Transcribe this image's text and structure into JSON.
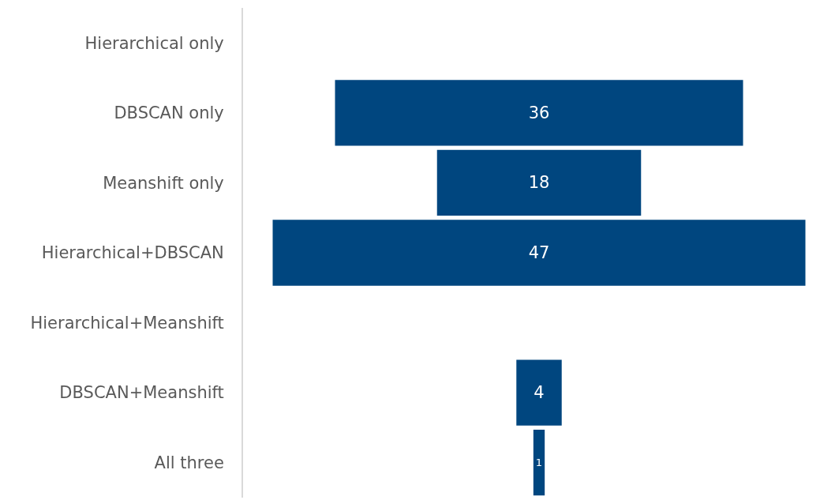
{
  "chart_data": {
    "type": "other",
    "categories": [
      "Hierarchical only",
      "DBSCAN only",
      "Meanshift only",
      "Hierarchical+DBSCAN",
      "Hierarchical+Meanshift",
      "DBSCAN+Meanshift",
      "All three"
    ],
    "values": [
      null,
      36,
      18,
      47,
      null,
      4,
      1
    ],
    "color": "#00467f",
    "data_labels": true
  }
}
